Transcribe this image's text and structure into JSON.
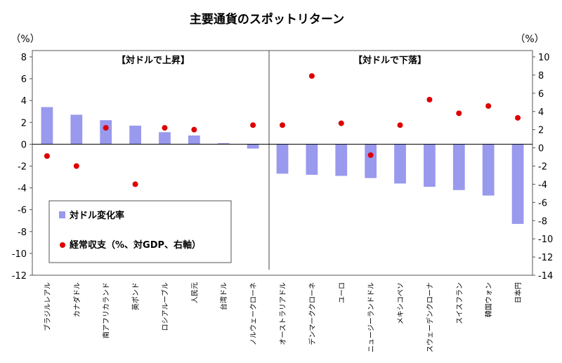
{
  "chart_data": {
    "type": "bar",
    "title": "主要通貨のスポットリターン",
    "left_axis_unit": "（%）",
    "right_axis_unit": "（%）",
    "left_axis": {
      "ylim": [
        -12,
        8
      ],
      "ticks": [
        -12,
        -10,
        -8,
        -6,
        -4,
        -2,
        0,
        2,
        4,
        6,
        8
      ]
    },
    "right_axis": {
      "ylim": [
        -14,
        10
      ],
      "ticks": [
        -14,
        -12,
        -10,
        -8,
        -6,
        -4,
        -2,
        0,
        2,
        4,
        6,
        8,
        10
      ]
    },
    "panel_labels": [
      "【対ドルで上昇】",
      "【対ドルで下落】"
    ],
    "categories": [
      "ブラジルレアル",
      "カナダドル",
      "南アフリカランド",
      "英ポンド",
      "ロシアルーブル",
      "人民元",
      "台湾ドル",
      "ノルウェークローネ",
      "オーストラリアドル",
      "デンマーククローネ",
      "ユーロ",
      "ニュージーランドドル",
      "メキシコペソ",
      "スウェーデンクローナ",
      "スイスフラン",
      "韓国ウォン",
      "日本円"
    ],
    "series": [
      {
        "name": "対ドル変化率",
        "axis": "left",
        "kind": "bar",
        "color": "#9999ee",
        "values": [
          3.4,
          2.7,
          2.2,
          1.7,
          1.1,
          0.8,
          0.1,
          -0.4,
          -2.7,
          -2.8,
          -2.9,
          -3.1,
          -3.6,
          -3.9,
          -4.2,
          -4.7,
          -7.3
        ]
      },
      {
        "name": "経常収支（%、対GDP、右軸）",
        "axis": "right",
        "kind": "dot",
        "color": "#dd0000",
        "values": [
          -0.9,
          -2.0,
          2.2,
          -4.0,
          2.2,
          2.0,
          null,
          2.5,
          2.5,
          7.9,
          2.7,
          -0.8,
          2.5,
          5.3,
          3.8,
          4.6,
          3.3
        ]
      }
    ],
    "grid": false,
    "legend_position": "bottom-left"
  }
}
